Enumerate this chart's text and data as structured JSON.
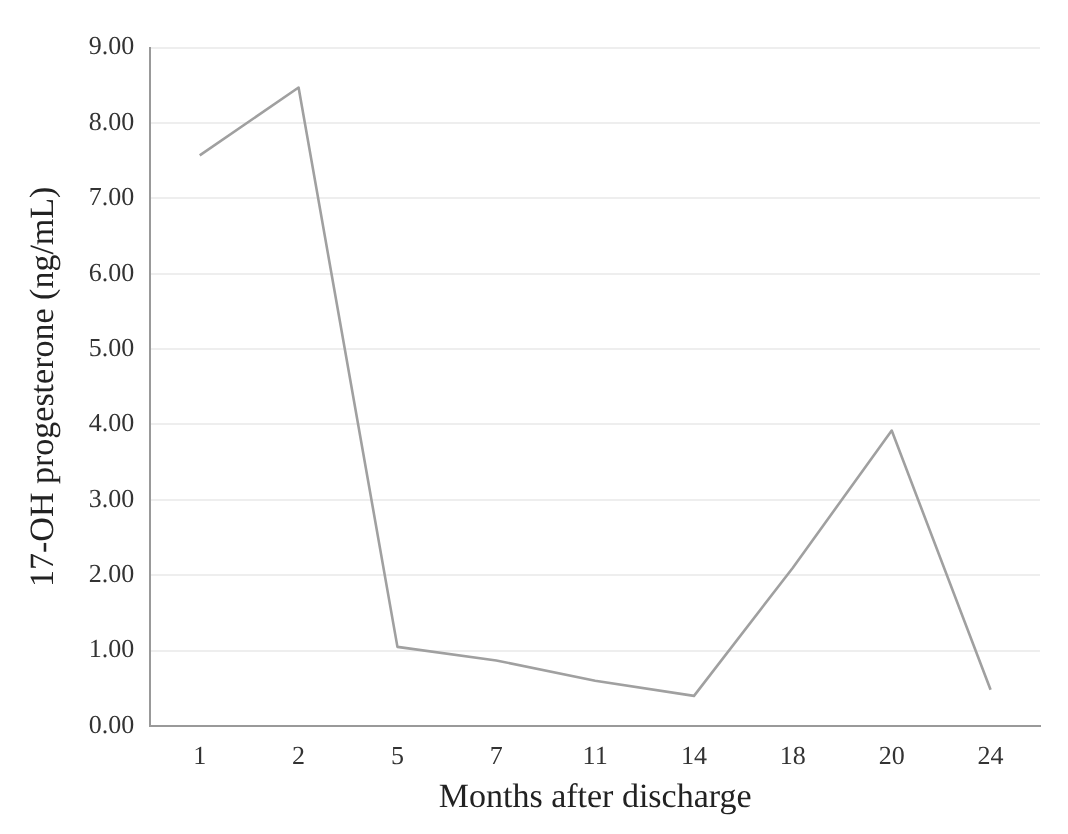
{
  "chart_data": {
    "type": "line",
    "xlabel": "Months after discharge",
    "ylabel": "17-OH progesterone (ng/mL)",
    "categories": [
      "1",
      "2",
      "5",
      "7",
      "11",
      "14",
      "18",
      "20",
      "24"
    ],
    "series": [
      {
        "color": "#a0a0a0",
        "values": [
          7.57,
          8.47,
          1.05,
          0.87,
          0.6,
          0.4,
          2.1,
          3.92,
          0.48
        ]
      }
    ],
    "ylim": [
      0,
      9
    ],
    "yticks": [
      {
        "value": 0,
        "label": "0.00"
      },
      {
        "value": 1,
        "label": "1.00"
      },
      {
        "value": 2,
        "label": "2.00"
      },
      {
        "value": 3,
        "label": "3.00"
      },
      {
        "value": 4,
        "label": "4.00"
      },
      {
        "value": 5,
        "label": "5.00"
      },
      {
        "value": 6,
        "label": "6.00"
      },
      {
        "value": 7,
        "label": "7.00"
      },
      {
        "value": 8,
        "label": "8.00"
      },
      {
        "value": 9,
        "label": "9.00"
      }
    ],
    "grid": "y",
    "legend": false,
    "marker": "none",
    "line_style": "solid"
  }
}
